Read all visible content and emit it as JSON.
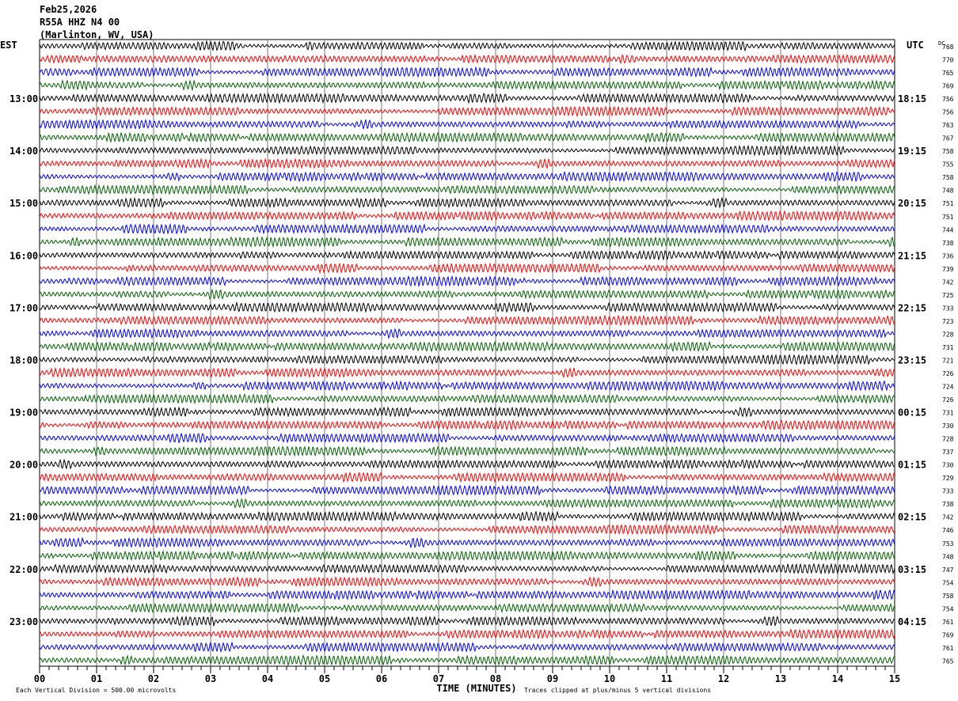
{
  "header": {
    "date": "Feb25,2026",
    "station": "R55A HHZ N4 00",
    "location": "(Marlinton, WV, USA)"
  },
  "chart_data": {
    "type": "line",
    "left_axis_label": "EST",
    "right_axis_label": "UTC",
    "dc_label": "DC",
    "xlabel": "TIME (MINUTES)",
    "xlim": [
      0,
      15
    ],
    "x_ticks": [
      "00",
      "01",
      "02",
      "03",
      "04",
      "05",
      "06",
      "07",
      "08",
      "09",
      "10",
      "11",
      "12",
      "13",
      "14",
      "15"
    ],
    "trace_minutes": 15,
    "trace_count": 48,
    "trace_colors": [
      "#000000",
      "#ff0000",
      "#0000ff",
      "#006400"
    ],
    "est_labels": [
      "13:00",
      "14:00",
      "15:00",
      "16:00",
      "17:00",
      "18:00",
      "19:00",
      "20:00",
      "21:00",
      "22:00",
      "23:00"
    ],
    "utc_labels": [
      "18:15",
      "19:15",
      "20:15",
      "21:15",
      "22:15",
      "23:15",
      "00:15",
      "01:15",
      "02:15",
      "03:15",
      "04:15"
    ],
    "dc_values": [
      768,
      770,
      765,
      769,
      756,
      756,
      763,
      767,
      758,
      755,
      758,
      748,
      751,
      751,
      744,
      738,
      736,
      739,
      742,
      725,
      733,
      723,
      728,
      731,
      721,
      726,
      724,
      726,
      731,
      730,
      728,
      737,
      730,
      729,
      733,
      738,
      742,
      746,
      753,
      748,
      747,
      754,
      758,
      754,
      761,
      769,
      761,
      765
    ],
    "scale_note": "Each Vertical Division =  500.00 microvolts",
    "clip_note": "Traces clipped at plus/minus 5 vertical divisions",
    "grid": true
  }
}
